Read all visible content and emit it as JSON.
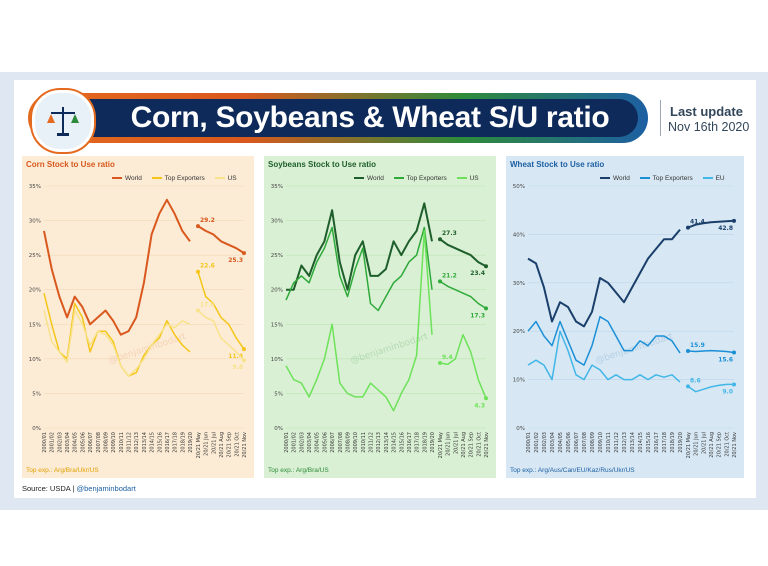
{
  "header": {
    "title": "Corn, Soybeans & Wheat S/U ratio",
    "last_update_label": "Last update",
    "last_update_value": "Nov 16th 2020"
  },
  "source": {
    "prefix": "Source: USDA | ",
    "handle": "@benjaminbodart"
  },
  "watermark": "@benjaminbodart",
  "colors": {
    "corn": "#e46a1f",
    "soy": "#2e8b3a",
    "wheat": "#1d5fa3"
  },
  "chart_data": [
    {
      "type": "line",
      "title": "Corn Stock to Use ratio",
      "ylim": [
        0,
        35
      ],
      "yticks": [
        "0%",
        "5%",
        "10%",
        "15%",
        "20%",
        "25%",
        "30%",
        "35%"
      ],
      "x_hist": [
        "2000/01",
        "2001/02",
        "2002/03",
        "2003/04",
        "2004/05",
        "2005/06",
        "2006/07",
        "2007/08",
        "2008/09",
        "2009/10",
        "2010/11",
        "2011/12",
        "2012/13",
        "2013/14",
        "2014/15",
        "2015/16",
        "2016/17",
        "2017/18",
        "2018/19",
        "2019/20"
      ],
      "x_proj": [
        "20/21 May",
        "20/21 Jun",
        "20/21 Jul",
        "20/21 Aug",
        "20/21 Sep",
        "20/21 Oct",
        "20/21 Nov"
      ],
      "series": [
        {
          "name": "World",
          "color": "#d9581d",
          "width": 2,
          "hist": [
            28.5,
            23,
            19,
            16,
            19,
            17.5,
            15,
            16,
            17,
            15.5,
            13.5,
            14,
            16,
            21,
            28,
            31,
            33,
            31,
            28.5,
            27
          ],
          "proj": [
            29.2,
            28.5,
            28,
            27,
            26.5,
            26,
            25.3
          ],
          "labels": {
            "first": "29.2",
            "last": "25.3"
          }
        },
        {
          "name": "Top Exporters",
          "color": "#f5c518",
          "width": 1.5,
          "hist": [
            19.5,
            15,
            11,
            10,
            18,
            16,
            11,
            14,
            14,
            12.5,
            9,
            7.5,
            8,
            10.5,
            12,
            13,
            15.5,
            13.5,
            12,
            11
          ],
          "proj": [
            22.6,
            19,
            18,
            16,
            15,
            13,
            11.4
          ],
          "labels": {
            "first": "22.6",
            "last": "11.4"
          }
        },
        {
          "name": "US",
          "color": "#f8e28a",
          "width": 1.5,
          "hist": [
            17,
            12.5,
            11,
            9.5,
            17,
            15,
            12,
            14,
            13.5,
            12,
            9,
            7.5,
            8.5,
            10,
            12,
            13.5,
            15,
            14.5,
            15.5,
            15
          ],
          "proj": [
            17.0,
            16,
            15.5,
            13,
            12,
            11,
            9.8
          ],
          "labels": {
            "first": "17.0",
            "last": "9.8"
          }
        }
      ],
      "legend": [
        "World",
        "Top Exporters",
        "US"
      ],
      "top_exp": "Top exp.: Arg/Bra/Ukr/US"
    },
    {
      "type": "line",
      "title": "Soybeans Stock to Use ratio",
      "ylim": [
        0,
        35
      ],
      "yticks": [
        "0%",
        "5%",
        "10%",
        "15%",
        "20%",
        "25%",
        "30%",
        "35%"
      ],
      "x_hist": [
        "2000/01",
        "2001/02",
        "2002/03",
        "2003/04",
        "2004/05",
        "2005/06",
        "2006/07",
        "2007/08",
        "2008/09",
        "2009/10",
        "2010/11",
        "2011/12",
        "2012/13",
        "2013/14",
        "2014/15",
        "2015/16",
        "2016/17",
        "2017/18",
        "2018/19",
        "2019/20"
      ],
      "x_proj": [
        "20/21 May",
        "20/21 Jun",
        "20/21 Jul",
        "20/21 Aug",
        "20/21 Sep",
        "20/21 Oct",
        "20/21 Nov"
      ],
      "series": [
        {
          "name": "World",
          "color": "#1e5e2b",
          "width": 2,
          "hist": [
            20,
            20,
            23.5,
            22,
            25,
            27,
            31.5,
            24,
            20,
            25,
            27,
            22,
            22,
            23,
            27,
            25,
            27,
            28.5,
            32.5,
            27
          ],
          "proj": [
            27.3,
            26.5,
            26,
            25.5,
            25,
            24,
            23.4
          ],
          "labels": {
            "first": "27.3",
            "last": "23.4"
          }
        },
        {
          "name": "Top Exporters",
          "color": "#2faa3a",
          "width": 1.5,
          "hist": [
            18.5,
            21,
            22,
            21,
            24,
            26,
            29,
            22,
            19,
            23,
            26,
            18,
            17,
            19,
            21,
            22,
            24,
            25,
            29,
            20
          ],
          "proj": [
            21.2,
            20.5,
            20,
            19.5,
            19,
            18,
            17.3
          ],
          "labels": {
            "first": "21.2",
            "last": "17.3"
          }
        },
        {
          "name": "US",
          "color": "#6ee25a",
          "width": 1.5,
          "hist": [
            9,
            7,
            6.5,
            4.5,
            7,
            10,
            15,
            6.5,
            5,
            4.5,
            4.5,
            6.5,
            5.5,
            4.5,
            2.5,
            5,
            7,
            10.5,
            28.5,
            13.5
          ],
          "proj": [
            9.4,
            9.2,
            10,
            13.5,
            11,
            7,
            4.3
          ],
          "labels": {
            "first": "9.4",
            "last": "4.3"
          }
        }
      ],
      "legend": [
        "World",
        "Top Exporters",
        "US"
      ],
      "top_exp": "Top exp.: Arg/Bra/US"
    },
    {
      "type": "line",
      "title": "Wheat Stock to Use ratio",
      "ylim": [
        0,
        50
      ],
      "yticks": [
        "0%",
        "10%",
        "20%",
        "30%",
        "40%",
        "50%"
      ],
      "x_hist": [
        "2000/01",
        "2001/02",
        "2002/03",
        "2003/04",
        "2004/05",
        "2005/06",
        "2006/07",
        "2007/08",
        "2008/09",
        "2009/10",
        "2010/11",
        "2011/12",
        "2012/13",
        "2013/14",
        "2014/15",
        "2015/16",
        "2016/17",
        "2017/18",
        "2018/19",
        "2019/20"
      ],
      "x_proj": [
        "20/21 May",
        "20/21 Jun",
        "20/21 Jul",
        "20/21 Aug",
        "20/21 Sep",
        "20/21 Oct",
        "20/21 Nov"
      ],
      "series": [
        {
          "name": "World",
          "color": "#1b3f6b",
          "width": 2,
          "hist": [
            35,
            34,
            29,
            22,
            26,
            25,
            22,
            21,
            24,
            31,
            30,
            28,
            26,
            29,
            32,
            35,
            37,
            39,
            39,
            41
          ],
          "proj": [
            41.4,
            42,
            42.3,
            42.5,
            42.6,
            42.7,
            42.8
          ],
          "labels": {
            "first": "41.4",
            "last": "42.8"
          }
        },
        {
          "name": "Top Exporters",
          "color": "#1b8fd6",
          "width": 1.5,
          "hist": [
            20,
            22,
            19,
            17,
            22,
            18,
            14,
            13,
            17,
            23,
            22,
            19,
            16,
            16,
            18,
            17,
            19,
            19,
            18,
            15.5
          ],
          "proj": [
            15.9,
            15.8,
            15.9,
            16,
            15.9,
            15.8,
            15.6
          ],
          "labels": {
            "first": "15.9",
            "last": "15.6"
          }
        },
        {
          "name": "EU",
          "color": "#42b6e8",
          "width": 1.5,
          "hist": [
            13,
            14,
            13,
            10,
            20,
            16,
            11,
            10,
            13,
            12,
            10,
            11,
            10,
            10,
            11,
            10,
            11,
            10.5,
            11,
            9.5
          ],
          "proj": [
            8.6,
            7.5,
            8,
            8.5,
            8.8,
            9,
            9.0
          ],
          "labels": {
            "first": "8.6",
            "last": "9.0"
          }
        }
      ],
      "legend": [
        "World",
        "Top Exporters",
        "EU"
      ],
      "top_exp": "Top exp.: Arg/Aus/Can/EU/Kaz/Rus/Ukr/US"
    }
  ]
}
